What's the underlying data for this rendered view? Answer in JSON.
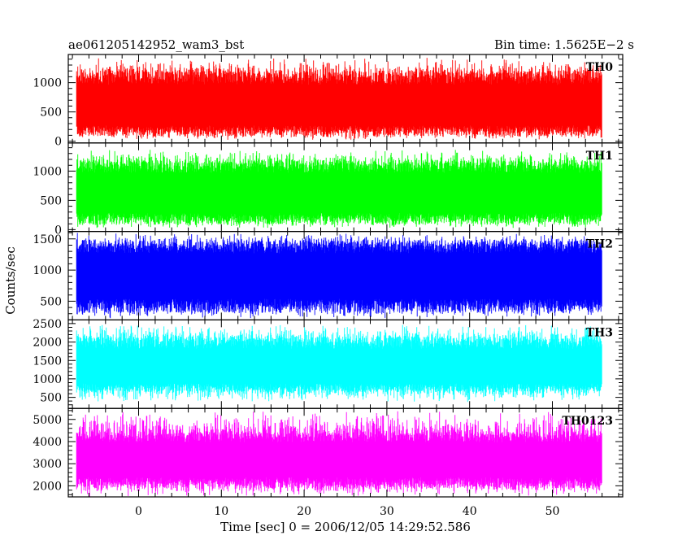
{
  "chart_data": {
    "type": "line",
    "title": "ae061205142952_wam3_bst",
    "subtitle": "Bin time: 1.5625E−2 s",
    "xlabel": "Time [sec] 0 = 2006/12/05 14:29:52.586",
    "ylabel": "Counts/sec",
    "xlim": [
      -8.5,
      58.5
    ],
    "data_xrange": [
      -7.5,
      56
    ],
    "xticks": [
      0,
      10,
      20,
      30,
      40,
      50
    ],
    "panels": [
      {
        "name": "TH0",
        "color": "#ff0000",
        "ylim": [
          -30,
          1480
        ],
        "yticks": [
          0,
          500,
          1000
        ],
        "mean": 600,
        "low": 90,
        "high": 1200,
        "lowmin": 20,
        "highmax": 1440
      },
      {
        "name": "TH1",
        "color": "#00ff00",
        "ylim": [
          -30,
          1480
        ],
        "yticks": [
          0,
          500,
          1000
        ],
        "mean": 650,
        "low": 90,
        "high": 1180,
        "lowmin": 20,
        "highmax": 1380
      },
      {
        "name": "TH2",
        "color": "#0000ff",
        "ylim": [
          200,
          1620
        ],
        "yticks": [
          500,
          1000,
          1500
        ],
        "mean": 950,
        "low": 320,
        "high": 1480,
        "lowmin": 220,
        "highmax": 1600
      },
      {
        "name": "TH3",
        "color": "#00ffff",
        "ylim": [
          200,
          2600
        ],
        "yticks": [
          500,
          1000,
          1500,
          2000,
          2500
        ],
        "mean": 1300,
        "low": 650,
        "high": 2150,
        "lowmin": 350,
        "highmax": 2500
      },
      {
        "name": "TH0123",
        "color": "#ff00ff",
        "ylim": [
          1500,
          5500
        ],
        "yticks": [
          2000,
          3000,
          4000,
          5000
        ],
        "mean": 3300,
        "low": 1900,
        "high": 4400,
        "lowmin": 1500,
        "highmax": 5400
      }
    ]
  }
}
